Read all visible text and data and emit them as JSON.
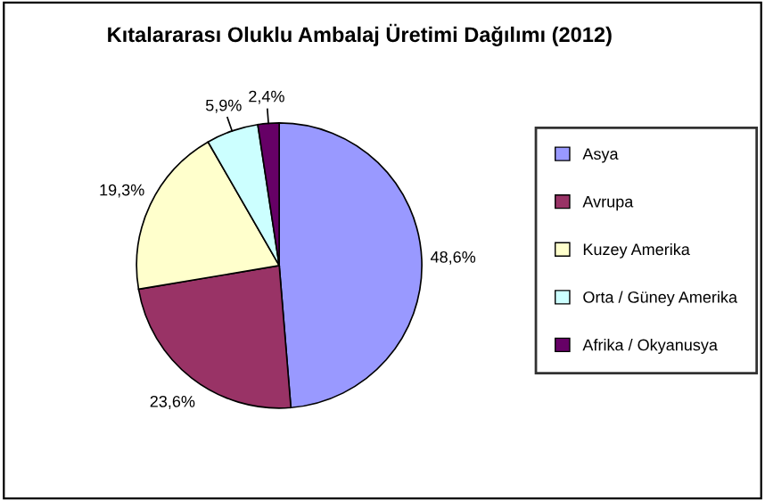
{
  "chart_data": {
    "type": "pie",
    "title": "Kıtalararası Oluklu Ambalaj Üretimi Dağılımı (2012)",
    "categories": [
      "Asya",
      "Avrupa",
      "Kuzey Amerika",
      "Orta / Güney Amerika",
      "Afrika / Okyanusya"
    ],
    "values": [
      48.6,
      23.6,
      19.3,
      5.9,
      2.4
    ],
    "value_labels": [
      "48,6%",
      "23,6%",
      "19,3%",
      "5,9%",
      "2,4%"
    ],
    "colors": [
      "#9999ff",
      "#993366",
      "#ffffcc",
      "#ccffff",
      "#660066"
    ],
    "legend": "right"
  }
}
